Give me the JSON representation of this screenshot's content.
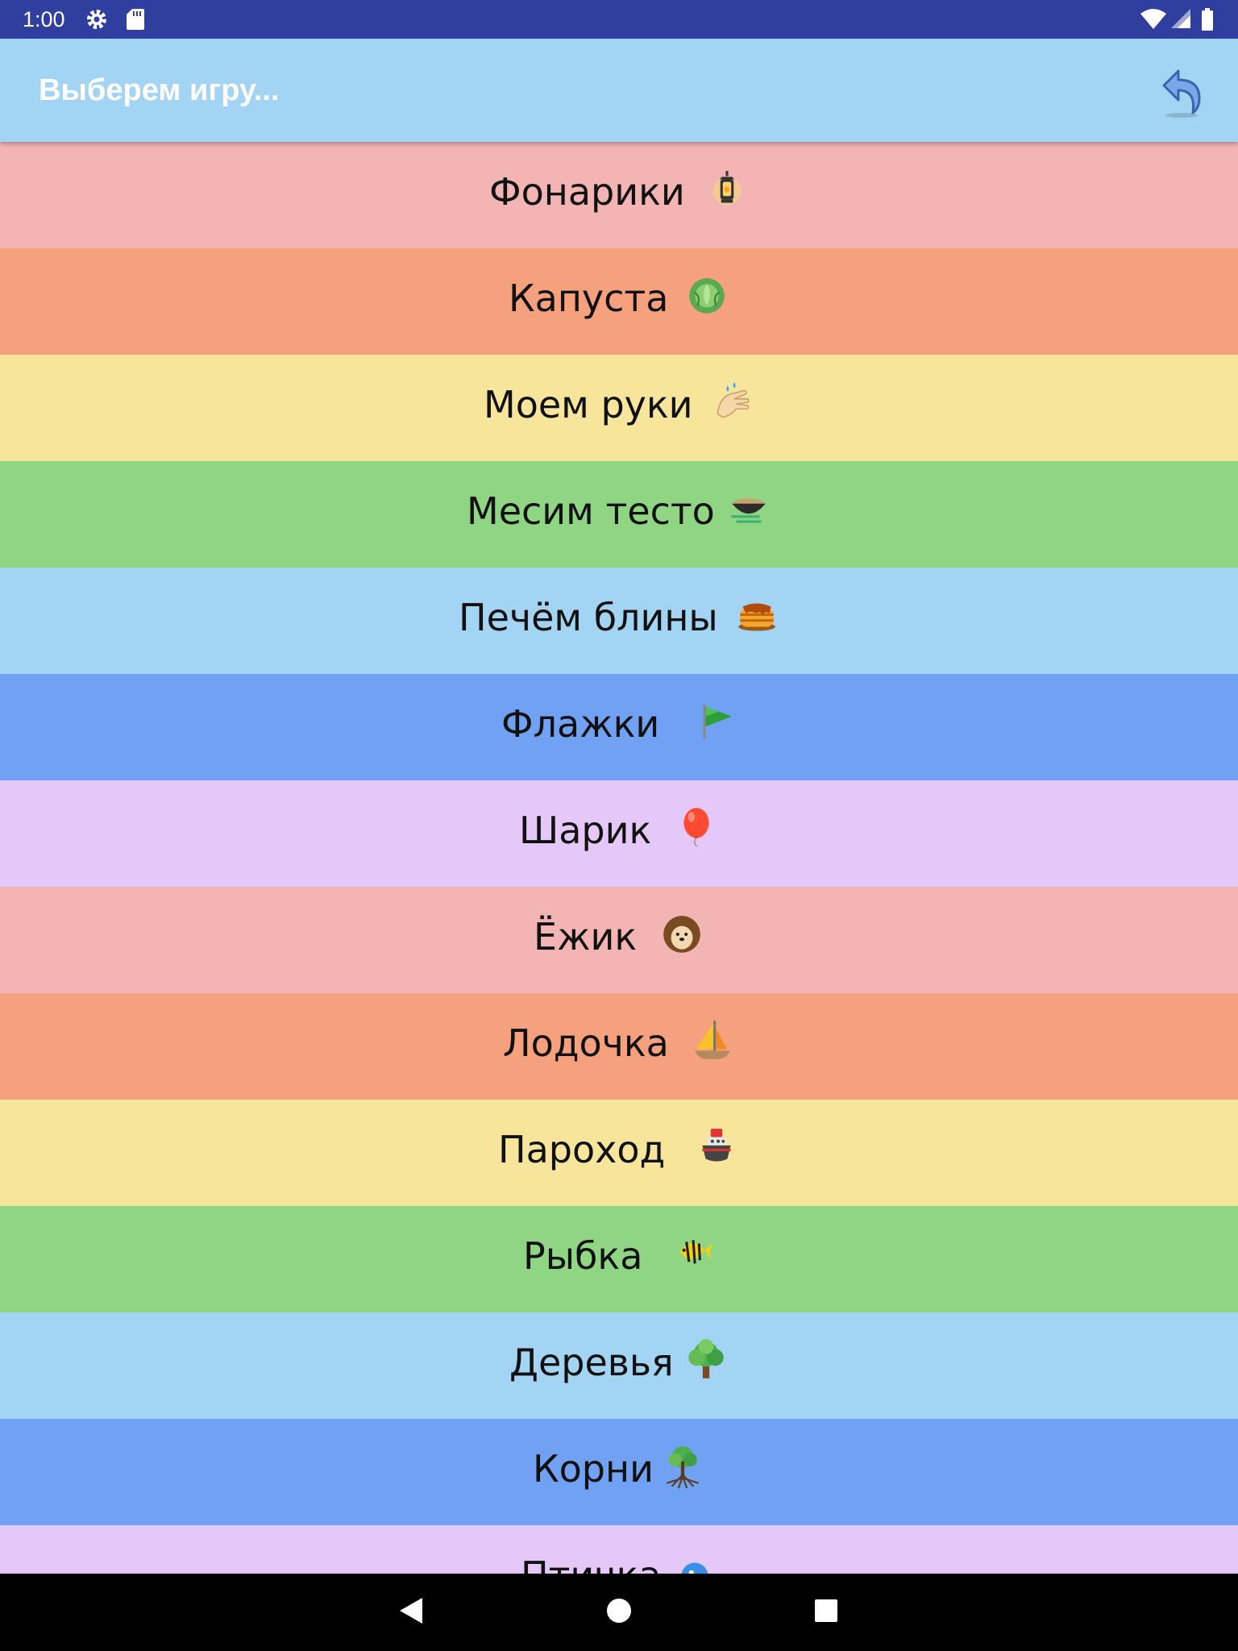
{
  "status": {
    "time": "1:00",
    "icons": [
      "settings-icon",
      "sd-card-icon",
      "wifi-icon",
      "signal-icon",
      "battery-icon"
    ]
  },
  "appbar": {
    "title": "Выберем игру...",
    "color": "#a4d4f3",
    "back_icon": "undo-arrow-icon"
  },
  "colors": {
    "pink": "#f2b5b3",
    "orange": "#f6a17d",
    "yellow": "#f6e59a",
    "green": "#8fd583",
    "light_blue": "#a4d4f3",
    "blue": "#70a1f3",
    "lavender": "#e5c8f8"
  },
  "games": [
    {
      "label": "Фонарики",
      "icon": "lantern-icon",
      "color": "#f2b5b3"
    },
    {
      "label": "Капуста",
      "icon": "cabbage-icon",
      "color": "#f6a17d"
    },
    {
      "label": "Моем руки",
      "icon": "washing-hands-icon",
      "color": "#f6e59a"
    },
    {
      "label": "Месим тесто",
      "icon": "dough-bowl-icon",
      "color": "#8fd583"
    },
    {
      "label": "Печём блины",
      "icon": "pancakes-icon",
      "color": "#a4d4f3"
    },
    {
      "label": "Флажки",
      "icon": "flag-icon",
      "color": "#70a1f3"
    },
    {
      "label": "Шарик",
      "icon": "balloon-icon",
      "color": "#e5c8f8"
    },
    {
      "label": "Ёжик",
      "icon": "hedgehog-icon",
      "color": "#f2b5b3"
    },
    {
      "label": "Лодочка",
      "icon": "sailboat-icon",
      "color": "#f6a17d"
    },
    {
      "label": "Пароход",
      "icon": "ship-icon",
      "color": "#f6e59a"
    },
    {
      "label": "Рыбка",
      "icon": "fish-icon",
      "color": "#8fd583"
    },
    {
      "label": "Деревья",
      "icon": "tree-icon",
      "color": "#a4d4f3"
    },
    {
      "label": "Корни",
      "icon": "tree-roots-icon",
      "color": "#70a1f3"
    },
    {
      "label": "Птичка",
      "icon": "bird-icon",
      "color": "#e5c8f8"
    }
  ],
  "navbar": {
    "buttons": [
      "back-triangle-icon",
      "home-circle-icon",
      "recents-square-icon"
    ]
  }
}
